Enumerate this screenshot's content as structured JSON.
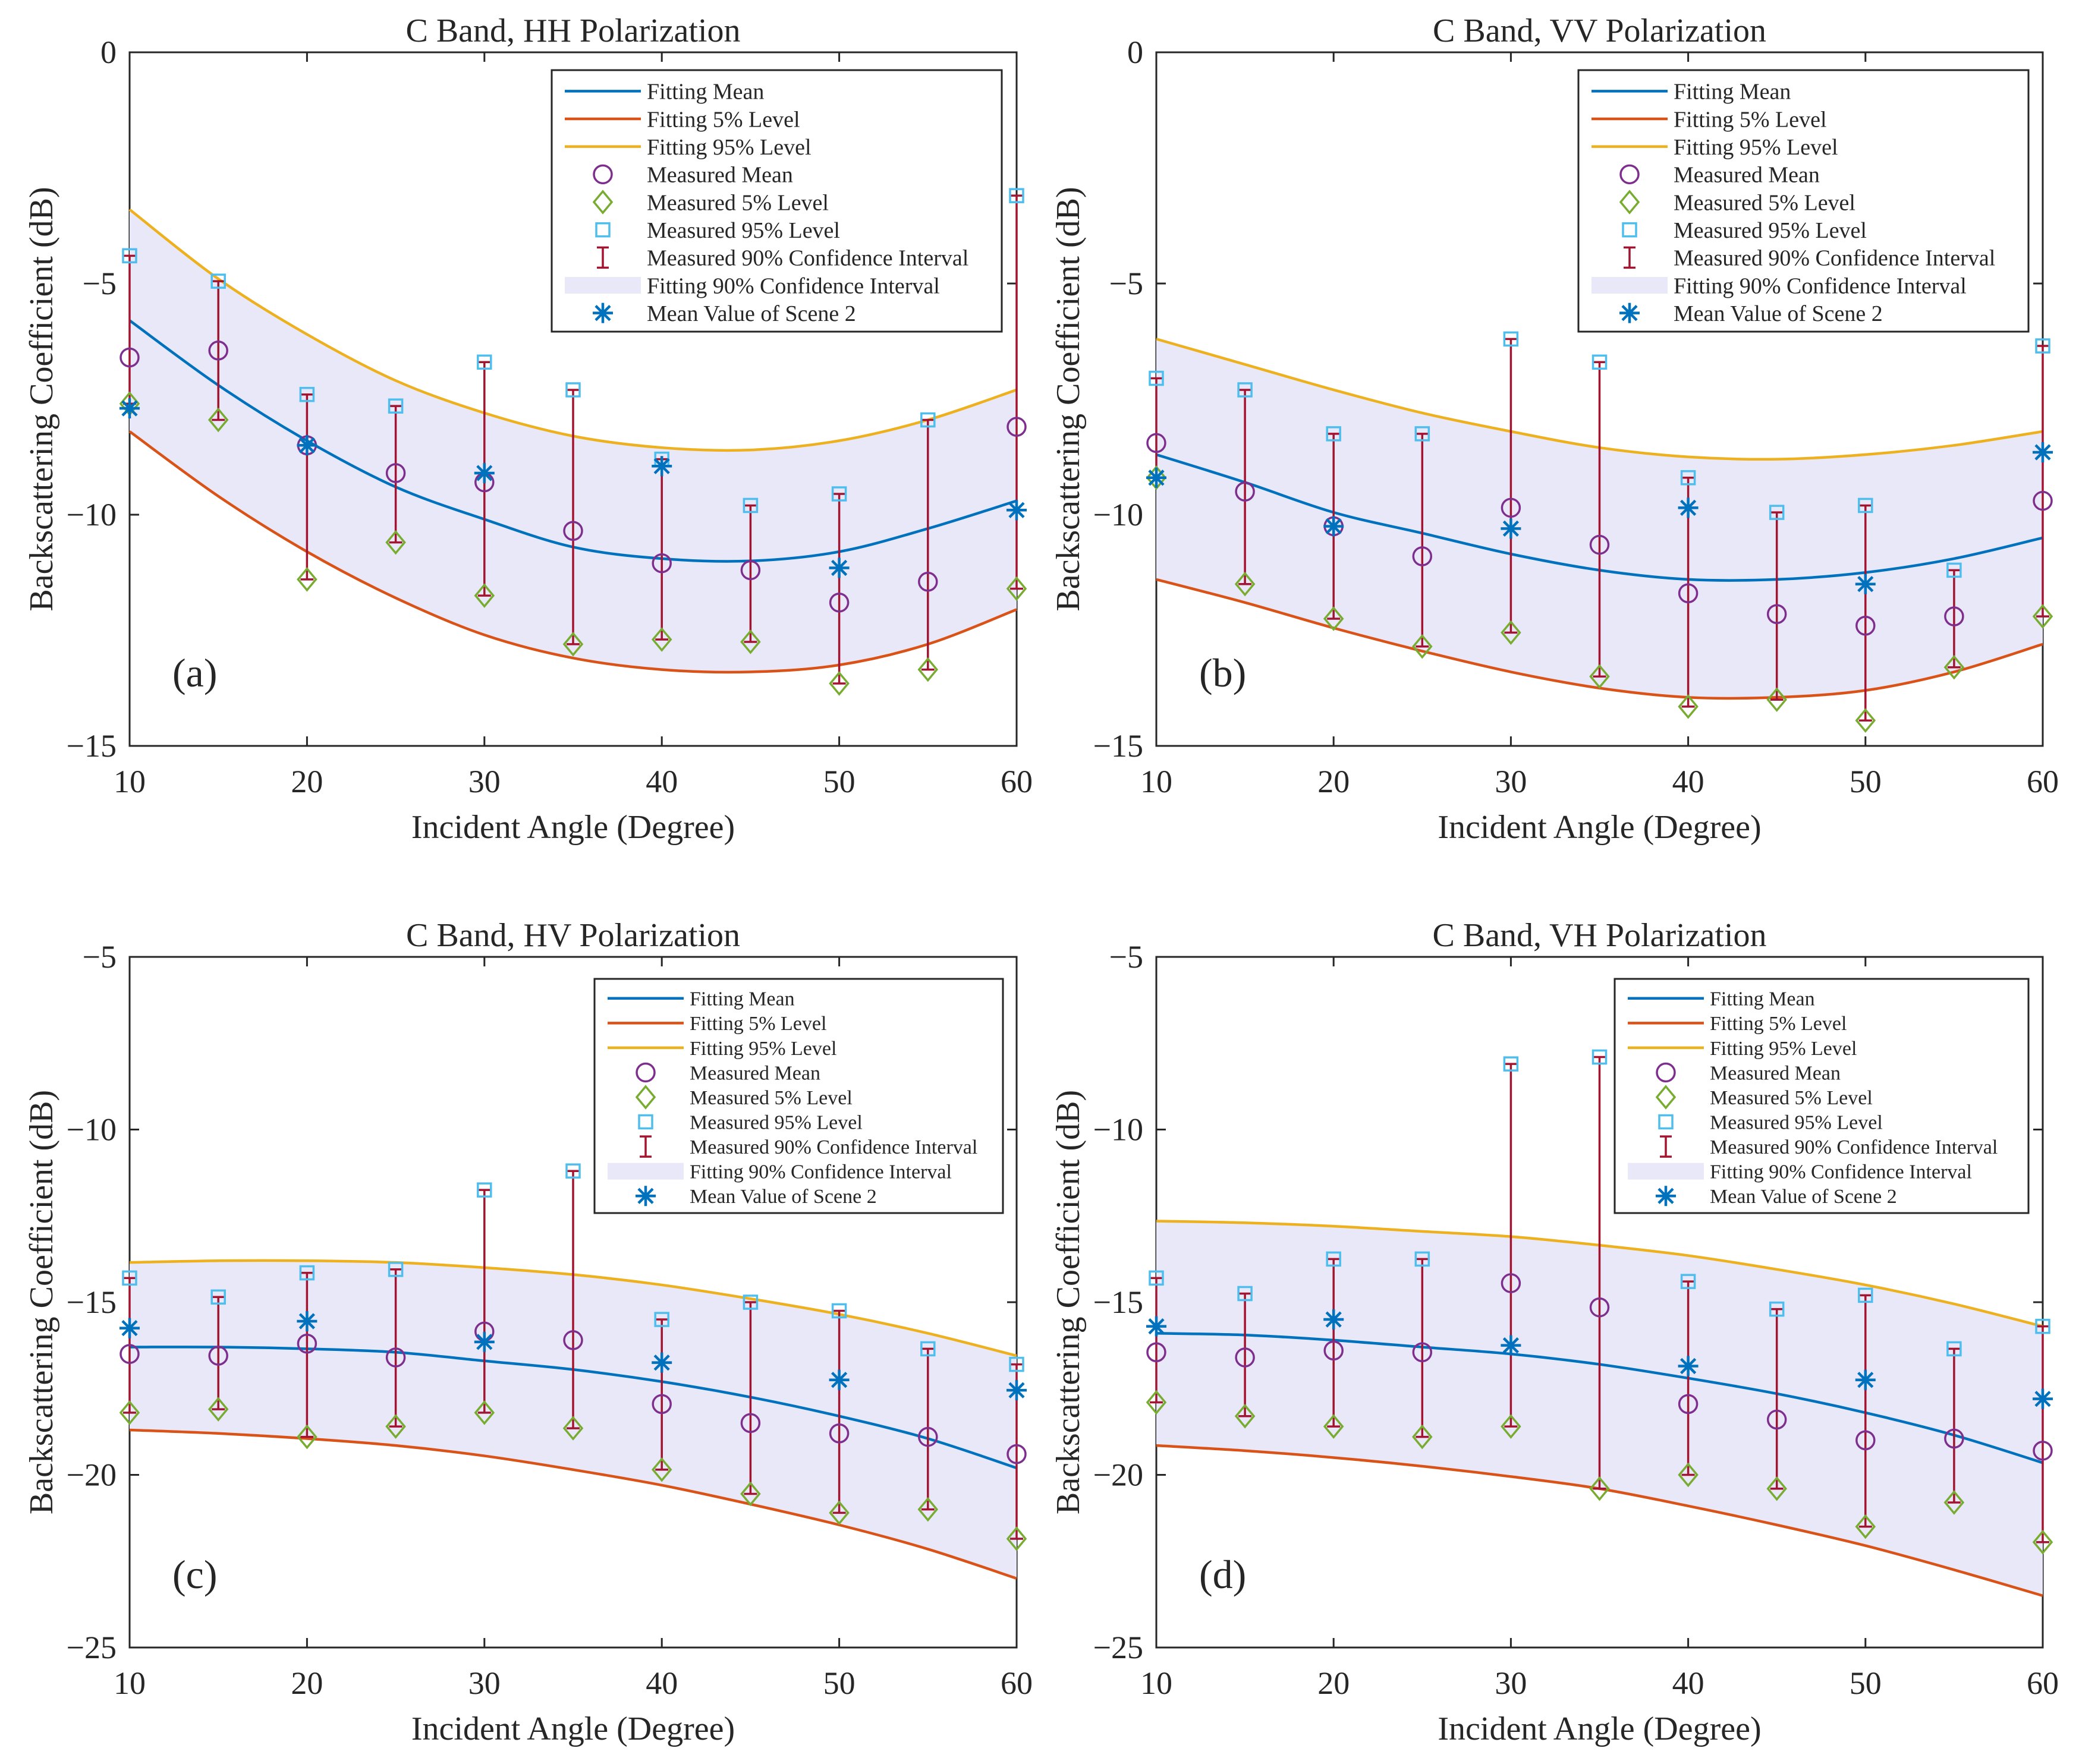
{
  "colors": {
    "fit_mean": "#0072BD",
    "fit_p5": "#D95319",
    "fit_p95": "#EDB120",
    "meas_mean": "#7E2F8E",
    "meas_p5": "#77AC30",
    "meas_p95": "#4DBEEE",
    "ci": "#A2142F",
    "band": "#E8E8F8",
    "scene2": "#0072BD",
    "axis": "#262626"
  },
  "legend_labels": [
    "Fitting Mean",
    "Fitting 5% Level",
    "Fitting 95% Level",
    "Measured Mean",
    "Measured 5% Level",
    "Measured 95% Level",
    "Measured 90% Confidence Interval",
    "Fitting 90% Confidence Interval",
    "Mean Value of Scene 2"
  ],
  "chart_data": [
    {
      "type": "line",
      "panel": "(a)",
      "title": "C Band, HH Polarization",
      "xlabel": "Incident Angle (Degree)",
      "ylabel": "Backscattering Coefficient (dB)",
      "xlim": [
        10,
        60
      ],
      "ylim": [
        -15,
        0
      ],
      "xticks": [
        10,
        20,
        30,
        40,
        50,
        60
      ],
      "yticks": [
        -15,
        -10,
        -5,
        0
      ],
      "legend_position": "top-right",
      "x": [
        10,
        15,
        20,
        25,
        30,
        35,
        40,
        45,
        50,
        55,
        60
      ],
      "fit_mean": [
        -5.8,
        -7.2,
        -8.4,
        -9.4,
        -10.1,
        -10.7,
        -10.95,
        -11.0,
        -10.8,
        -10.3,
        -9.7
      ],
      "fit_p5": [
        -8.2,
        -9.6,
        -10.8,
        -11.8,
        -12.6,
        -13.1,
        -13.35,
        -13.4,
        -13.25,
        -12.8,
        -12.05
      ],
      "fit_p95": [
        -3.4,
        -4.9,
        -6.1,
        -7.1,
        -7.8,
        -8.3,
        -8.55,
        -8.6,
        -8.4,
        -7.95,
        -7.3
      ],
      "measured_mean": [
        -6.6,
        -6.45,
        -8.5,
        -9.1,
        -9.3,
        -10.35,
        -11.05,
        -11.2,
        -11.9,
        -11.45,
        -8.1
      ],
      "measured_p5": [
        -7.6,
        -7.95,
        -11.4,
        -10.6,
        -11.75,
        -12.8,
        -12.7,
        -12.75,
        -13.65,
        -13.35,
        -11.6
      ],
      "measured_p95": [
        -4.4,
        -4.95,
        -7.4,
        -7.65,
        -6.7,
        -7.3,
        -8.8,
        -9.8,
        -9.55,
        -7.95,
        -3.1
      ],
      "scene2_mean": [
        -7.7,
        null,
        -8.5,
        null,
        -9.1,
        null,
        -8.95,
        null,
        -11.15,
        null,
        -9.9
      ]
    },
    {
      "type": "line",
      "panel": "(b)",
      "title": "C Band, VV Polarization",
      "xlabel": "Incident Angle (Degree)",
      "ylabel": "Backscattering Coefficient (dB)",
      "xlim": [
        10,
        60
      ],
      "ylim": [
        -15,
        0
      ],
      "xticks": [
        10,
        20,
        30,
        40,
        50,
        60
      ],
      "yticks": [
        -15,
        -10,
        -5,
        0
      ],
      "legend_position": "top-right",
      "x": [
        10,
        15,
        20,
        25,
        30,
        35,
        40,
        45,
        50,
        55,
        60
      ],
      "fit_mean": [
        -8.7,
        -9.3,
        -9.95,
        -10.4,
        -10.85,
        -11.2,
        -11.4,
        -11.4,
        -11.25,
        -10.95,
        -10.5
      ],
      "fit_p5": [
        -11.4,
        -11.9,
        -12.45,
        -12.95,
        -13.4,
        -13.75,
        -13.95,
        -13.95,
        -13.8,
        -13.4,
        -12.8
      ],
      "fit_p95": [
        -6.2,
        -6.75,
        -7.3,
        -7.8,
        -8.2,
        -8.55,
        -8.75,
        -8.8,
        -8.7,
        -8.5,
        -8.2
      ],
      "measured_mean": [
        -8.45,
        -9.5,
        -10.25,
        -10.9,
        -9.85,
        -10.65,
        -11.7,
        -12.15,
        -12.4,
        -12.2,
        -9.7
      ],
      "measured_p5": [
        -9.2,
        -11.5,
        -12.25,
        -12.85,
        -12.55,
        -13.5,
        -14.15,
        -14.0,
        -14.45,
        -13.3,
        -12.2
      ],
      "measured_p95": [
        -7.05,
        -7.3,
        -8.25,
        -8.25,
        -6.2,
        -6.7,
        -9.2,
        -9.95,
        -9.8,
        -11.2,
        -6.35
      ],
      "scene2_mean": [
        -9.2,
        null,
        -10.25,
        null,
        -10.3,
        null,
        -9.85,
        null,
        -11.5,
        null,
        -8.65
      ]
    },
    {
      "type": "line",
      "panel": "(c)",
      "title": "C Band, HV Polarization",
      "xlabel": "Incident Angle (Degree)",
      "ylabel": "Backscattering Coefficient (dB)",
      "xlim": [
        10,
        60
      ],
      "ylim": [
        -25,
        -5
      ],
      "xticks": [
        10,
        20,
        30,
        40,
        50,
        60
      ],
      "yticks": [
        -25,
        -20,
        -15,
        -10,
        -5
      ],
      "legend_position": "top-right",
      "x": [
        10,
        15,
        20,
        25,
        30,
        35,
        40,
        45,
        50,
        55,
        60
      ],
      "fit_mean": [
        -16.3,
        -16.3,
        -16.35,
        -16.45,
        -16.7,
        -16.95,
        -17.3,
        -17.75,
        -18.3,
        -18.95,
        -19.8
      ],
      "fit_p5": [
        -18.7,
        -18.8,
        -18.95,
        -19.15,
        -19.45,
        -19.85,
        -20.3,
        -20.85,
        -21.45,
        -22.15,
        -23.0
      ],
      "fit_p95": [
        -13.85,
        -13.8,
        -13.8,
        -13.85,
        -14.0,
        -14.2,
        -14.5,
        -14.9,
        -15.35,
        -15.9,
        -16.55
      ],
      "measured_mean": [
        -16.5,
        -16.55,
        -16.2,
        -16.6,
        -15.85,
        -16.1,
        -17.95,
        -18.5,
        -18.8,
        -18.9,
        -19.4
      ],
      "measured_p5": [
        -18.2,
        -18.1,
        -18.9,
        -18.6,
        -18.2,
        -18.65,
        -19.85,
        -20.55,
        -21.1,
        -21.0,
        -21.85
      ],
      "measured_p95": [
        -14.3,
        -14.85,
        -14.15,
        -14.05,
        -11.75,
        -11.2,
        -15.5,
        -15.0,
        -15.25,
        -16.35,
        -16.8
      ],
      "scene2_mean": [
        -15.75,
        null,
        -15.55,
        null,
        -16.15,
        null,
        -16.75,
        null,
        -17.25,
        null,
        -17.55
      ]
    },
    {
      "type": "line",
      "panel": "(d)",
      "title": "C Band, VH Polarization",
      "xlabel": "Incident Angle (Degree)",
      "ylabel": "Backscattering Coefficient (dB)",
      "xlim": [
        10,
        60
      ],
      "ylim": [
        -25,
        -5
      ],
      "xticks": [
        10,
        20,
        30,
        40,
        50,
        60
      ],
      "yticks": [
        -25,
        -20,
        -15,
        -10,
        -5
      ],
      "legend_position": "top-right",
      "x": [
        10,
        15,
        20,
        25,
        30,
        35,
        40,
        45,
        50,
        55,
        60
      ],
      "fit_mean": [
        -15.9,
        -15.95,
        -16.1,
        -16.3,
        -16.5,
        -16.8,
        -17.2,
        -17.65,
        -18.2,
        -18.85,
        -19.65
      ],
      "fit_p5": [
        -19.15,
        -19.3,
        -19.5,
        -19.75,
        -20.05,
        -20.4,
        -20.9,
        -21.45,
        -22.05,
        -22.75,
        -23.5
      ],
      "fit_p95": [
        -12.65,
        -12.7,
        -12.8,
        -12.95,
        -13.1,
        -13.35,
        -13.65,
        -14.05,
        -14.5,
        -15.05,
        -15.7
      ],
      "measured_mean": [
        -16.45,
        -16.6,
        -16.4,
        -16.45,
        -14.45,
        -15.15,
        -17.95,
        -18.4,
        -19.0,
        -18.95,
        -19.3
      ],
      "measured_p5": [
        -17.9,
        -18.3,
        -18.6,
        -18.9,
        -18.6,
        -20.4,
        -20.0,
        -20.4,
        -21.5,
        -20.8,
        -21.95
      ],
      "measured_p95": [
        -14.3,
        -14.75,
        -13.75,
        -13.75,
        -8.1,
        -7.9,
        -14.4,
        -15.2,
        -14.8,
        -16.35,
        -15.7
      ],
      "scene2_mean": [
        -15.7,
        null,
        -15.5,
        null,
        -16.25,
        null,
        -16.85,
        null,
        -17.25,
        null,
        -17.8
      ]
    }
  ]
}
